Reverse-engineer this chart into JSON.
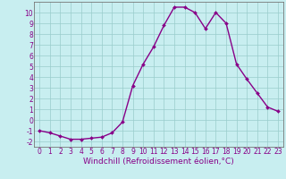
{
  "x": [
    0,
    1,
    2,
    3,
    4,
    5,
    6,
    7,
    8,
    9,
    10,
    11,
    12,
    13,
    14,
    15,
    16,
    17,
    18,
    19,
    20,
    21,
    22,
    23
  ],
  "y": [
    -1.0,
    -1.2,
    -1.5,
    -1.8,
    -1.8,
    -1.7,
    -1.6,
    -1.2,
    -0.2,
    3.2,
    5.2,
    6.8,
    8.8,
    10.5,
    10.5,
    10.0,
    8.5,
    10.0,
    9.0,
    5.2,
    3.8,
    2.5,
    1.2,
    0.8
  ],
  "line_color": "#880088",
  "marker": "D",
  "marker_size": 2.0,
  "line_width": 1.0,
  "bg_color": "#c8eef0",
  "grid_color": "#99cccc",
  "tick_color": "#880088",
  "label_color": "#880088",
  "xlabel": "Windchill (Refroidissement éolien,°C)",
  "xlabel_fontsize": 6.5,
  "ylim": [
    -2.5,
    11.0
  ],
  "xlim": [
    -0.5,
    23.5
  ],
  "xticks": [
    0,
    1,
    2,
    3,
    4,
    5,
    6,
    7,
    8,
    9,
    10,
    11,
    12,
    13,
    14,
    15,
    16,
    17,
    18,
    19,
    20,
    21,
    22,
    23
  ],
  "yticks": [
    -2,
    -1,
    0,
    1,
    2,
    3,
    4,
    5,
    6,
    7,
    8,
    9,
    10
  ],
  "tick_fontsize": 5.5,
  "spine_color": "#777777"
}
